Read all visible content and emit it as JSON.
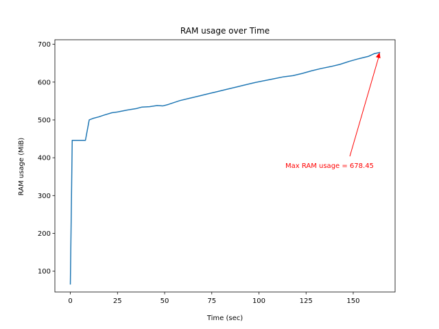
{
  "chart_data": {
    "type": "line",
    "title": "RAM usage over Time",
    "xlabel": "Time (sec)",
    "ylabel": "RAM usage (MiB)",
    "xlim": [
      -8.2,
      172.2
    ],
    "ylim": [
      45,
      712
    ],
    "xticks": [
      0,
      25,
      50,
      75,
      100,
      125,
      150
    ],
    "yticks": [
      100,
      200,
      300,
      400,
      500,
      600,
      700
    ],
    "grid": false,
    "legend": "none",
    "series": [
      {
        "color": "#1f77b4",
        "points": [
          [
            0,
            66
          ],
          [
            1,
            446
          ],
          [
            2,
            446
          ],
          [
            8,
            446
          ],
          [
            10,
            500
          ],
          [
            12,
            504
          ],
          [
            15,
            508
          ],
          [
            18,
            513
          ],
          [
            22,
            519
          ],
          [
            25,
            521
          ],
          [
            30,
            526
          ],
          [
            35,
            530
          ],
          [
            38,
            534
          ],
          [
            42,
            535
          ],
          [
            46,
            538
          ],
          [
            49,
            537
          ],
          [
            52,
            541
          ],
          [
            55,
            546
          ],
          [
            58,
            551
          ],
          [
            63,
            557
          ],
          [
            68,
            563
          ],
          [
            73,
            569
          ],
          [
            78,
            575
          ],
          [
            83,
            581
          ],
          [
            88,
            587
          ],
          [
            93,
            593
          ],
          [
            98,
            599
          ],
          [
            103,
            604
          ],
          [
            108,
            609
          ],
          [
            113,
            614
          ],
          [
            118,
            617
          ],
          [
            123,
            623
          ],
          [
            128,
            630
          ],
          [
            133,
            636
          ],
          [
            138,
            641
          ],
          [
            143,
            647
          ],
          [
            148,
            655
          ],
          [
            153,
            662
          ],
          [
            158,
            668
          ],
          [
            161,
            675
          ],
          [
            164,
            678.45
          ]
        ]
      }
    ],
    "annotation": {
      "text": "Max RAM usage = 678.45",
      "color": "#ff0000",
      "point": [
        164,
        678.45
      ],
      "text_position": [
        114,
        380
      ]
    }
  }
}
